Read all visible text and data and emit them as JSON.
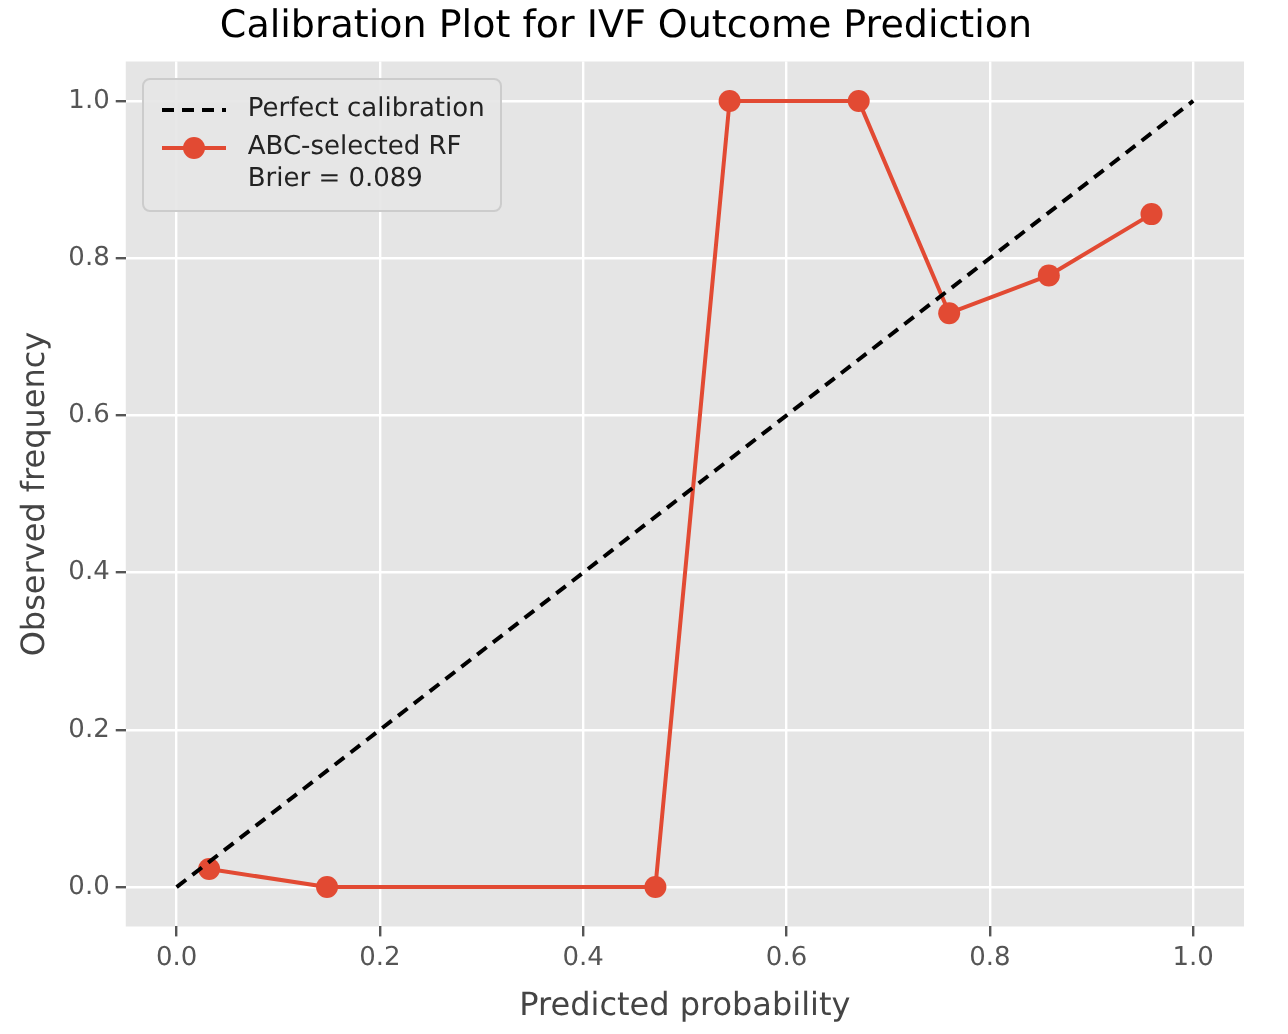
{
  "chart_data": {
    "type": "line",
    "title": "Calibration Plot for IVF Outcome Prediction",
    "xlabel": "Predicted probability",
    "ylabel": "Observed frequency",
    "xlim": [
      -0.05,
      1.05
    ],
    "ylim": [
      -0.05,
      1.05
    ],
    "xticks": [
      {
        "value": 0,
        "label": "0.0"
      },
      0.2,
      0.4,
      0.6,
      0.8,
      {
        "value": 1,
        "label": "1.0"
      }
    ],
    "yticks": [
      {
        "value": 0,
        "label": "0.0"
      },
      0.2,
      0.4,
      0.6,
      0.8,
      {
        "value": 1,
        "label": "1.0"
      }
    ],
    "grid": true,
    "legend": "top left",
    "series": [
      {
        "name": "Perfect calibration",
        "color": "#000000",
        "x": [
          0,
          1
        ],
        "values": [
          0,
          1
        ],
        "line_style": "dashed",
        "marker": "none"
      },
      {
        "name": "ABC-selected RF\nBrier = 0.089",
        "color": "#e24a33",
        "x": [
          0.032,
          0.148,
          0.471,
          0.544,
          0.671,
          0.76,
          0.858,
          0.959
        ],
        "values": [
          0.023,
          0,
          0,
          1,
          1,
          0.73,
          0.778,
          0.856
        ],
        "line_style": "solid",
        "marker": "circle"
      }
    ]
  }
}
